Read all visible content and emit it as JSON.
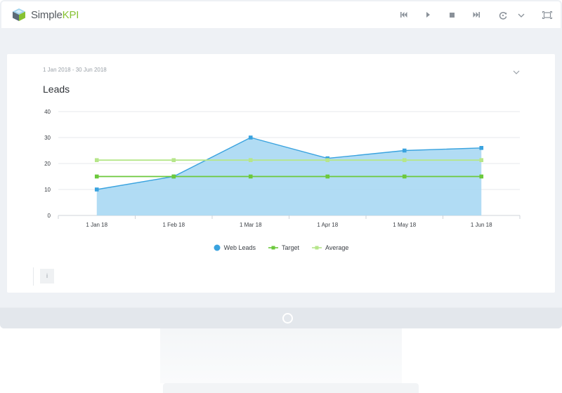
{
  "app": {
    "logo_name": "Simple",
    "logo_kpi": "KPI",
    "brand_color": "#86c232",
    "icons": [
      "skip-back-icon",
      "play-icon",
      "stop-icon",
      "skip-forward-icon",
      "refresh-timer-icon",
      "chevron-down-icon",
      "fullscreen-icon"
    ]
  },
  "card": {
    "date_range": "1 Jan 2018 - 30 Jun 2018",
    "info_label": "i"
  },
  "chart_data": {
    "type": "line",
    "title": "Leads",
    "categories": [
      "1 Jan 18",
      "1 Feb 18",
      "1 Mar 18",
      "1 Apr 18",
      "1 May 18",
      "1 Jun 18"
    ],
    "ylim": [
      0,
      40
    ],
    "yticks": [
      0,
      10,
      20,
      30,
      40
    ],
    "grid": true,
    "legend_position": "bottom",
    "series": [
      {
        "name": "Web Leads",
        "values": [
          10,
          15,
          30,
          22,
          25,
          26
        ],
        "color": "#3aa3df",
        "fill": "#a8d8f3",
        "style": "area"
      },
      {
        "name": "Target",
        "values": [
          15,
          15,
          15,
          15,
          15,
          15
        ],
        "color": "#6cc93c",
        "style": "line"
      },
      {
        "name": "Average",
        "values": [
          21.3,
          21.3,
          21.3,
          21.3,
          21.3,
          21.3
        ],
        "color": "#b6e68a",
        "style": "line"
      }
    ]
  }
}
